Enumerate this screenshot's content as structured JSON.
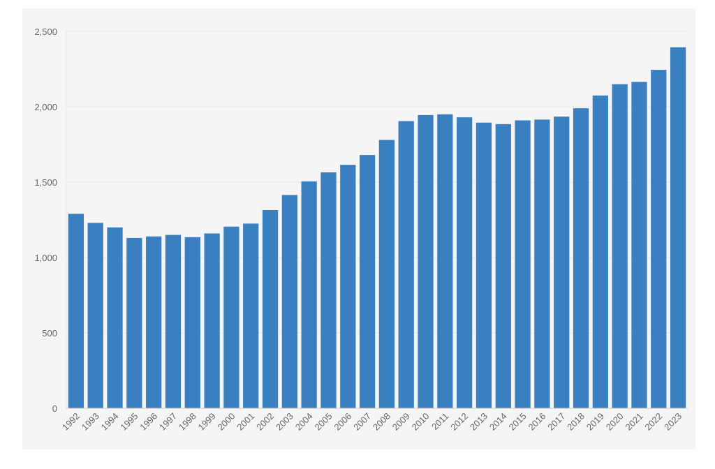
{
  "chart_data": {
    "type": "bar",
    "title": "",
    "xlabel": "",
    "ylabel": "",
    "ylim": [
      0,
      2500
    ],
    "yticks": [
      0,
      500,
      1000,
      1500,
      2000,
      2500
    ],
    "ytick_labels": [
      "0",
      "500",
      "1,000",
      "1,500",
      "2,000",
      "2,500"
    ],
    "grid": true,
    "bar_color": "#3a80c0",
    "categories": [
      "1992",
      "1993",
      "1994",
      "1995",
      "1996",
      "1997",
      "1998",
      "1999",
      "2000",
      "2001",
      "2002",
      "2003",
      "2004",
      "2005",
      "2006",
      "2007",
      "2008",
      "2009",
      "2010",
      "2011",
      "2012",
      "2013",
      "2014",
      "2015",
      "2016",
      "2017",
      "2018",
      "2019",
      "2020",
      "2021",
      "2022",
      "2023"
    ],
    "values": [
      1290,
      1230,
      1200,
      1130,
      1140,
      1150,
      1135,
      1160,
      1205,
      1225,
      1315,
      1415,
      1505,
      1565,
      1615,
      1680,
      1780,
      1905,
      1945,
      1950,
      1930,
      1895,
      1885,
      1910,
      1915,
      1935,
      1990,
      2075,
      2150,
      2165,
      2245,
      2395
    ]
  }
}
